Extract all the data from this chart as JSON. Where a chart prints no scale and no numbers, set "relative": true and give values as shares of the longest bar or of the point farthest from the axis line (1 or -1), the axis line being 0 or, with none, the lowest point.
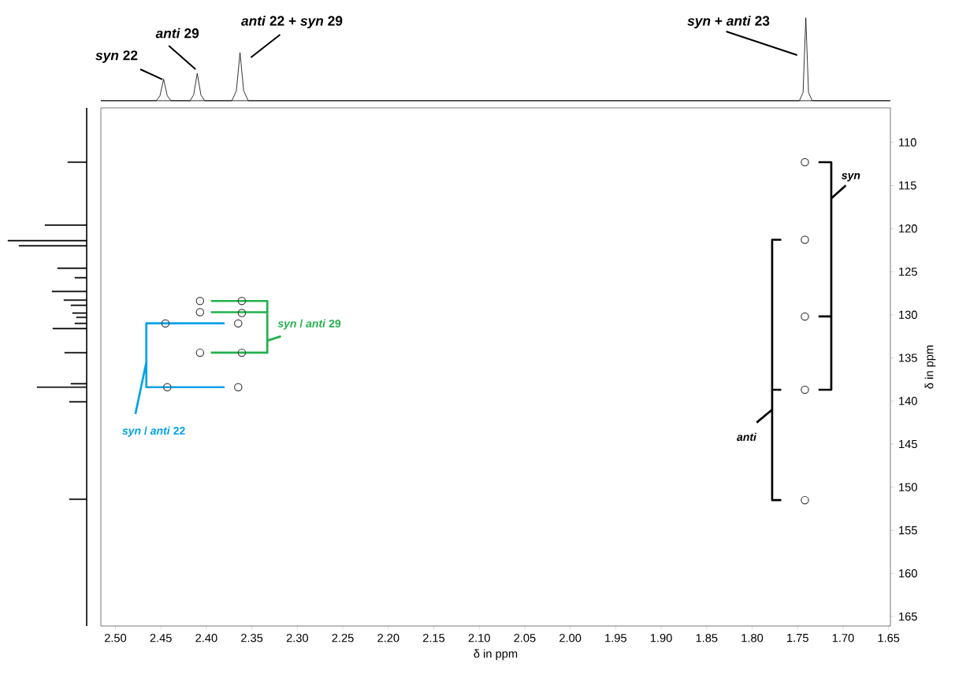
{
  "chart_data": [
    {
      "type": "line",
      "relative": true,
      "tick_labels": false,
      "color": "#000000",
      "xlim": [
        2.516,
        1.648
      ],
      "x": [
        2.516,
        2.455,
        2.451,
        2.447,
        2.443,
        2.439,
        2.418,
        2.414,
        2.41,
        2.406,
        2.402,
        2.372,
        2.367,
        2.363,
        2.359,
        2.354,
        1.748,
        1.744,
        1.741,
        1.738,
        1.734,
        1.648
      ],
      "values": [
        0,
        0,
        0.06,
        0.26,
        0.06,
        0,
        0,
        0.07,
        0.33,
        0.07,
        0,
        0,
        0.12,
        0.58,
        0.12,
        0,
        0,
        0.1,
        1,
        0.1,
        0,
        0
      ],
      "annotations": [
        "*syn* 22",
        "*anti* 29",
        "*anti* 22 + *syn* 29",
        "*syn* + *anti* 23"
      ]
    },
    {
      "type": "bar",
      "orientation": "horizontal",
      "relative": true,
      "tick_labels": false,
      "color": "#000000",
      "ylim": [
        166.1,
        106.0
      ],
      "x": [
        112.3,
        119.6,
        121.4,
        122.0,
        124.6,
        125.7,
        127.3,
        128.3,
        128.9,
        129.8,
        130.3,
        131.0,
        131.6,
        134.4,
        138.0,
        138.4,
        140.1,
        151.4
      ],
      "values": [
        0.24,
        0.53,
        1,
        0.86,
        0.37,
        0.15,
        0.44,
        0.29,
        0.2,
        0.18,
        0.13,
        0.15,
        0.43,
        0.28,
        0.2,
        0.63,
        0.22,
        0.22
      ]
    },
    {
      "type": "scatter",
      "xlabel": "δ in ppm",
      "ylabel": "δ in ppm",
      "xlim": [
        2.516,
        1.648
      ],
      "ylim": [
        166.1,
        106.0
      ],
      "xticks": [
        {
          "value": 2.5,
          "label": "2.50"
        },
        {
          "value": 2.45,
          "label": "2.45"
        },
        {
          "value": 2.4,
          "label": "2.40"
        },
        {
          "value": 2.35,
          "label": "2.35"
        },
        {
          "value": 2.3,
          "label": "2.30"
        },
        {
          "value": 2.25,
          "label": "2.25"
        },
        {
          "value": 2.2,
          "label": "2.20"
        },
        {
          "value": 2.15,
          "label": "2.15"
        },
        {
          "value": 2.1,
          "label": "2.10"
        },
        {
          "value": 2.05,
          "label": "2.05"
        },
        {
          "value": 2.0,
          "label": "2.00"
        },
        {
          "value": 1.95,
          "label": "1.95"
        },
        {
          "value": 1.9,
          "label": "1.90"
        },
        {
          "value": 1.85,
          "label": "1.85"
        },
        {
          "value": 1.8,
          "label": "1.80"
        },
        {
          "value": 1.75,
          "label": "1.75"
        },
        {
          "value": 1.7,
          "label": "1.70"
        },
        {
          "value": 1.65,
          "label": "1.65"
        }
      ],
      "yticks": [
        110,
        115,
        120,
        125,
        130,
        135,
        140,
        145,
        150,
        155,
        160,
        165
      ],
      "series": [
        {
          "type": "scatter",
          "marker": "circle",
          "color": "#404040",
          "x": [
            1.742,
            1.742,
            1.742,
            1.742,
            1.742,
            2.443,
            2.365,
            2.445,
            2.365,
            2.407,
            2.361,
            2.407,
            2.361,
            2.407,
            2.361
          ],
          "values": [
            112.3,
            121.3,
            130.2,
            138.7,
            151.5,
            138.4,
            138.4,
            131.0,
            131.0,
            128.4,
            128.4,
            129.7,
            129.8,
            134.4,
            134.4
          ]
        },
        {
          "type": "line",
          "color": "#22b14c",
          "x": [
            2.395,
            2.333,
            2.333,
            2.395,
            null,
            2.395,
            2.333,
            null,
            2.333,
            2.318
          ],
          "values": [
            128.4,
            128.4,
            134.4,
            134.4,
            null,
            129.7,
            129.7,
            null,
            133.0,
            132.5
          ]
        },
        {
          "type": "line",
          "color": "#00a2e8",
          "x": [
            2.38,
            2.466,
            2.466,
            2.38,
            null,
            2.466,
            2.478
          ],
          "values": [
            131.0,
            131.0,
            138.4,
            138.4,
            null,
            135.5,
            141.5
          ]
        },
        {
          "type": "line",
          "color": "#000000",
          "x": [
            1.727,
            1.713,
            1.713,
            1.727,
            null,
            1.727,
            1.713,
            null,
            1.713,
            1.697
          ],
          "values": [
            112.3,
            112.3,
            138.7,
            138.7,
            null,
            130.2,
            130.2,
            null,
            116.5,
            115.0
          ]
        },
        {
          "type": "line",
          "color": "#000000",
          "x": [
            1.768,
            1.778,
            1.778,
            1.768,
            null,
            1.768,
            1.778,
            null,
            1.778,
            1.795
          ],
          "values": [
            121.3,
            121.3,
            151.5,
            151.5,
            null,
            138.7,
            138.7,
            null,
            141.0,
            142.5
          ]
        }
      ],
      "annotations": [
        "*syn* / *anti* 29",
        "*syn* / *anti* 22",
        "*syn*",
        "*anti*"
      ]
    }
  ]
}
